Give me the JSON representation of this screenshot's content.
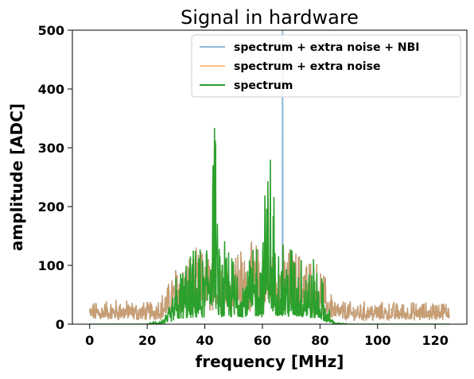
{
  "chart_data": {
    "type": "line",
    "title": "Signal in hardware",
    "xlabel": "frequency [MHz]",
    "ylabel": "amplitude [ADC]",
    "xlim": [
      -6,
      131
    ],
    "ylim": [
      0,
      500
    ],
    "xticks": [
      0,
      20,
      40,
      60,
      80,
      100,
      120
    ],
    "yticks": [
      0,
      100,
      200,
      300,
      400,
      500
    ],
    "grid": false,
    "legend_position": "top-right",
    "series": [
      {
        "name": "spectrum + extra noise + NBI",
        "color": "#1f77b4",
        "alpha": 0.5,
        "description_points": {
          "x": [
            66.9,
            66.9,
            67.1,
            67.1
          ],
          "y": [
            5,
            500,
            500,
            5
          ]
        }
      },
      {
        "name": "spectrum + extra noise",
        "color": "#ff7f0e",
        "alpha": 0.5,
        "envelope": {
          "x": [
            0,
            10,
            20,
            25,
            28,
            30,
            35,
            40,
            45,
            50,
            55,
            60,
            65,
            70,
            75,
            80,
            82,
            85,
            90,
            100,
            110,
            120,
            125
          ],
          "y": [
            22,
            25,
            22,
            30,
            45,
            60,
            70,
            75,
            72,
            75,
            78,
            80,
            80,
            75,
            70,
            60,
            45,
            25,
            22,
            22,
            22,
            22,
            25
          ]
        }
      },
      {
        "name": "spectrum",
        "color": "#2ca02c",
        "alpha": 1.0,
        "envelope": {
          "x": [
            0,
            20,
            25,
            28,
            30,
            35,
            40,
            43,
            45,
            50,
            55,
            60,
            62,
            65,
            68,
            70,
            75,
            80,
            82,
            85,
            90,
            125
          ],
          "y": [
            0,
            0,
            5,
            20,
            55,
            70,
            75,
            248,
            80,
            78,
            85,
            90,
            195,
            100,
            85,
            90,
            75,
            60,
            25,
            2,
            0,
            0
          ]
        }
      }
    ]
  }
}
